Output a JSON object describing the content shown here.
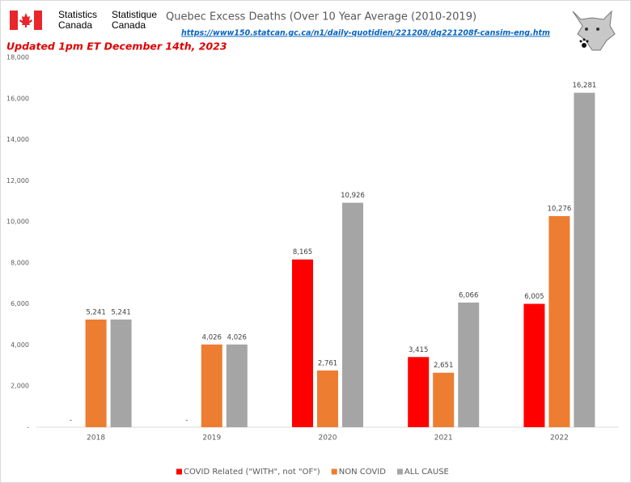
{
  "chart_data": {
    "type": "bar",
    "title": "Quebec Excess Deaths (Over 10 Year Average (2010-2019)",
    "source_url": "https://www150.statcan.gc.ca/n1/daily-quotidien/221208/dq221208f-cansim-eng.htm",
    "updated_note": "Updated 1pm ET December 14th, 2023",
    "agency_en": [
      "Statistics",
      "Canada"
    ],
    "agency_fr": [
      "Statistique",
      "Canada"
    ],
    "categories": [
      "2018",
      "2019",
      "2020",
      "2021",
      "2022"
    ],
    "series": [
      {
        "name": "COVID Related (\"WITH\", not \"OF\")",
        "color": "#ff0000",
        "values": [
          0,
          0,
          8165,
          3415,
          6005
        ],
        "value_labels": [
          "-",
          "-",
          "8,165",
          "3,415",
          "6,005"
        ]
      },
      {
        "name": "NON COVID",
        "color": "#ed7d31",
        "values": [
          5241,
          4026,
          2761,
          2651,
          10276
        ],
        "value_labels": [
          "5,241",
          "4,026",
          "2,761",
          "2,651",
          "10,276"
        ]
      },
      {
        "name": "ALL CAUSE",
        "color": "#a5a5a5",
        "values": [
          5241,
          4026,
          10926,
          6066,
          16281
        ],
        "value_labels": [
          "5,241",
          "4,026",
          "10,926",
          "6,066",
          "16,281"
        ]
      }
    ],
    "ylim": [
      0,
      18000
    ],
    "yticks": [
      {
        "value": 0,
        "label": "-"
      },
      {
        "value": 2000,
        "label": "2,000"
      },
      {
        "value": 4000,
        "label": "4,000"
      },
      {
        "value": 6000,
        "label": "6,000"
      },
      {
        "value": 8000,
        "label": "8,000"
      },
      {
        "value": 10000,
        "label": "10,000"
      },
      {
        "value": 12000,
        "label": "12,000"
      },
      {
        "value": 14000,
        "label": "14,000"
      },
      {
        "value": 16000,
        "label": "16,000"
      },
      {
        "value": 18000,
        "label": "18,000"
      }
    ],
    "grid": false,
    "legend": "bottom"
  }
}
